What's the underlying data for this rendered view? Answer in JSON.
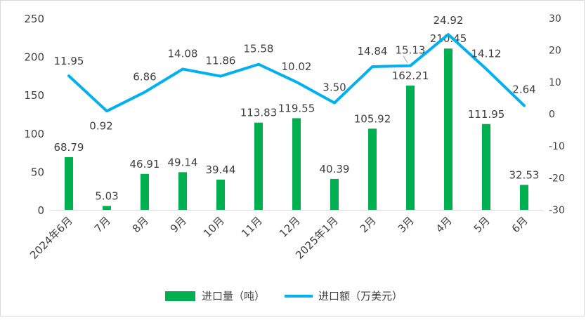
{
  "chart_data": {
    "type": "bar+line",
    "categories": [
      "2024年6月",
      "7月",
      "8月",
      "9月",
      "10月",
      "11月",
      "12月",
      "2025年1月",
      "2月",
      "3月",
      "4月",
      "5月",
      "6月"
    ],
    "series": [
      {
        "name": "进口量（吨）",
        "type": "bar",
        "axis": "left",
        "color": "#00b050",
        "values": [
          68.79,
          5.03,
          46.91,
          49.14,
          39.44,
          113.83,
          119.55,
          40.39,
          105.92,
          162.21,
          210.45,
          111.95,
          32.53
        ]
      },
      {
        "name": "进口额（万美元）",
        "type": "line",
        "axis": "right",
        "color": "#00b0f0",
        "values": [
          11.95,
          0.92,
          6.86,
          14.08,
          11.86,
          15.58,
          10.02,
          3.5,
          14.84,
          15.13,
          24.92,
          14.12,
          2.64
        ]
      }
    ],
    "y_left": {
      "min": 0,
      "max": 250,
      "ticks": [
        0,
        50,
        100,
        150,
        200,
        250
      ]
    },
    "y_right": {
      "min": -30,
      "max": 30,
      "ticks": [
        -30,
        -20,
        -10,
        0,
        10,
        20,
        30
      ]
    },
    "grid": false,
    "legend_position": "bottom"
  }
}
